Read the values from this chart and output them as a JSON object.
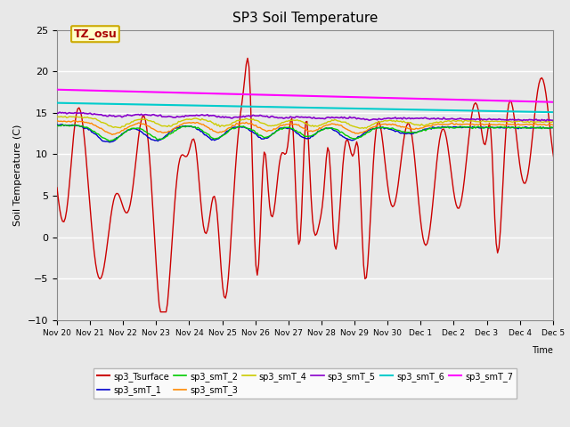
{
  "title": "SP3 Soil Temperature",
  "ylabel": "Soil Temperature (C)",
  "xlabel": "Time",
  "ylim": [
    -10,
    25
  ],
  "background_color": "#e8e8e8",
  "plot_bg_color": "#e8e8e8",
  "tz_label": "TZ_osu",
  "x_tick_labels": [
    "Nov 20",
    "Nov 21",
    "Nov 22",
    "Nov 23",
    "Nov 24",
    "Nov 25",
    "Nov 26",
    "Nov 27",
    "Nov 28",
    "Nov 29",
    "Nov 30",
    "Dec 1",
    "Dec 2",
    "Dec 3",
    "Dec 4",
    "Dec 5"
  ],
  "series_colors": {
    "sp3_Tsurface": "#cc0000",
    "sp3_smT_1": "#0000cc",
    "sp3_smT_2": "#00cc00",
    "sp3_smT_3": "#ff8800",
    "sp3_smT_4": "#cccc00",
    "sp3_smT_5": "#8800cc",
    "sp3_smT_6": "#00cccc",
    "sp3_smT_7": "#ff00ff"
  },
  "grid_color": "#ffffff",
  "legend_ncol": 6
}
